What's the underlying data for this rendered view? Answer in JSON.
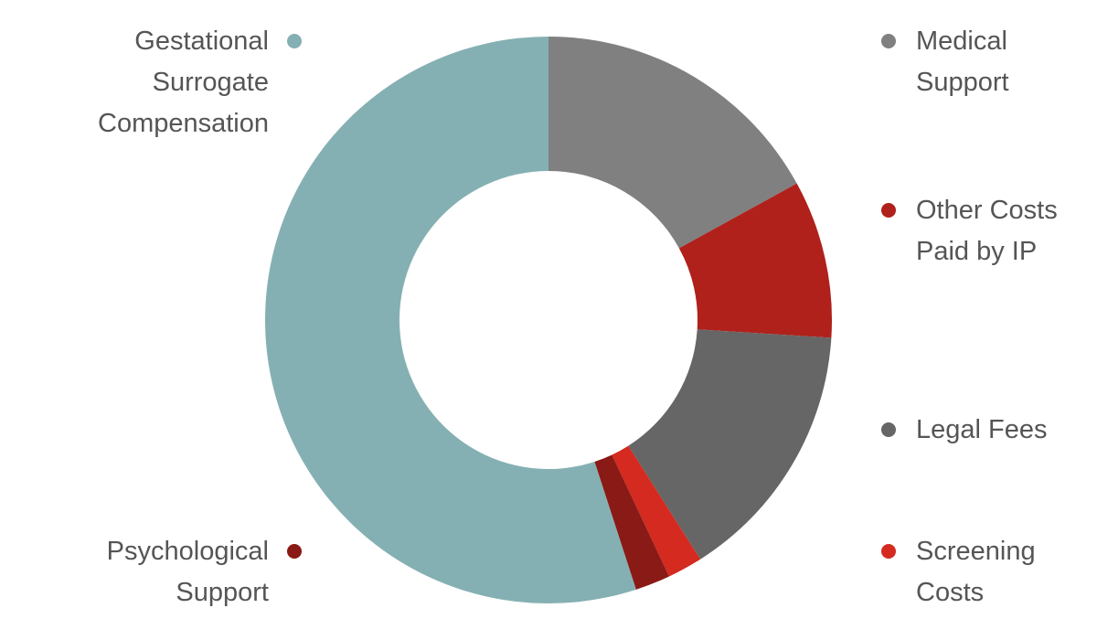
{
  "chart_data": {
    "type": "donut",
    "categories": [
      "Medical Support",
      "Other Costs Paid by IP",
      "Legal Fees",
      "Screening Costs",
      "Psychological Support",
      "Gestational Surrogate Compensation"
    ],
    "values": [
      17,
      9,
      15,
      2,
      2,
      55
    ],
    "colors": [
      "#808080",
      "#b0211c",
      "#666666",
      "#d42a20",
      "#8a1a15",
      "#85b0b3"
    ]
  }
}
